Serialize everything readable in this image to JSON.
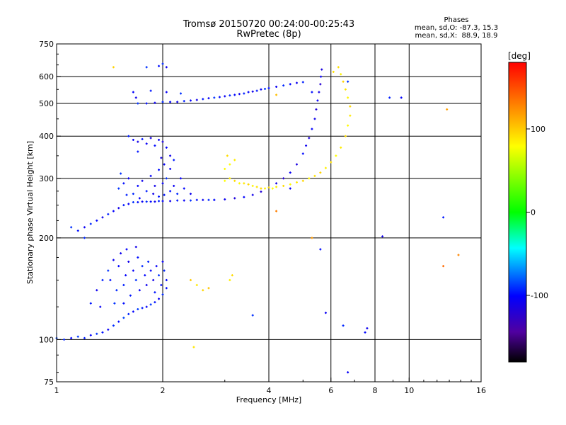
{
  "header": {
    "title": "Tromsø 20150720 00:24:00-00:25:43",
    "subtitle": "RwPretec (8p)"
  },
  "stats": {
    "heading": "Phases",
    "line_o": "mean, sd,O: -87.3, 15.3",
    "line_x": "mean, sd,X:  88.9, 18.9"
  },
  "colorbar": {
    "unit": "[deg]",
    "ticks": [
      {
        "value": 100,
        "label": "100"
      },
      {
        "value": 0,
        "label": "0"
      },
      {
        "value": -100,
        "label": "-100"
      }
    ],
    "range": [
      -180,
      180
    ],
    "stops": [
      "#ff0000",
      "#ff8000",
      "#ffff00",
      "#00ff00",
      "#00ffff",
      "#0000ff",
      "#5000a0",
      "#000000"
    ]
  },
  "chart_data": {
    "type": "scatter",
    "title": "Tromsø 20150720 00:24:00-00:25:43",
    "subtitle": "RwPretec (8p)",
    "xlabel": "Frequency [MHz]",
    "ylabel": "Stationary phase Virtual Height [km]",
    "xscale": "log",
    "yscale": "log",
    "xlim": [
      1,
      16
    ],
    "ylim": [
      75,
      750
    ],
    "xticks": [
      {
        "value": 1,
        "label": "1"
      },
      {
        "value": 2,
        "label": "2"
      },
      {
        "value": 4,
        "label": "4"
      },
      {
        "value": 6,
        "label": "6"
      },
      {
        "value": 8,
        "label": "8"
      },
      {
        "value": 10,
        "label": "10"
      },
      {
        "value": 16,
        "label": "16"
      }
    ],
    "yticks": [
      {
        "value": 75,
        "label": "75"
      },
      {
        "value": 100,
        "label": "100"
      },
      {
        "value": 200,
        "label": "200"
      },
      {
        "value": 300,
        "label": "300"
      },
      {
        "value": 400,
        "label": "400"
      },
      {
        "value": 500,
        "label": "500"
      },
      {
        "value": 600,
        "label": "600"
      },
      {
        "value": 750,
        "label": "750"
      }
    ],
    "x_gridlines": [
      2,
      4,
      6,
      8,
      10
    ],
    "y_gridlines": [
      100,
      200,
      300,
      400,
      500,
      600
    ],
    "grid": true,
    "color_variable": "phase [deg]",
    "series": [
      {
        "trace": "o-trace lower layer",
        "phase": -95,
        "points": [
          [
            1.0,
            101
          ],
          [
            1.05,
            100
          ],
          [
            1.1,
            101
          ],
          [
            1.15,
            102
          ],
          [
            1.2,
            101
          ],
          [
            1.25,
            103
          ],
          [
            1.3,
            104
          ],
          [
            1.35,
            105
          ],
          [
            1.4,
            107
          ],
          [
            1.45,
            110
          ],
          [
            1.5,
            113
          ],
          [
            1.55,
            116
          ],
          [
            1.6,
            119
          ],
          [
            1.65,
            121
          ],
          [
            1.7,
            123
          ],
          [
            1.75,
            124
          ],
          [
            1.8,
            125
          ],
          [
            1.85,
            127
          ],
          [
            1.9,
            129
          ],
          [
            1.95,
            132
          ],
          [
            2.0,
            136
          ],
          [
            2.05,
            142
          ]
        ]
      },
      {
        "trace": "o-trace scatter 120-190 km",
        "phase": -100,
        "points": [
          [
            1.4,
            160
          ],
          [
            1.42,
            150
          ],
          [
            1.45,
            172
          ],
          [
            1.48,
            140
          ],
          [
            1.5,
            165
          ],
          [
            1.52,
            180
          ],
          [
            1.55,
            145
          ],
          [
            1.57,
            155
          ],
          [
            1.6,
            170
          ],
          [
            1.62,
            135
          ],
          [
            1.65,
            160
          ],
          [
            1.68,
            150
          ],
          [
            1.7,
            175
          ],
          [
            1.72,
            140
          ],
          [
            1.75,
            165
          ],
          [
            1.78,
            155
          ],
          [
            1.8,
            145
          ],
          [
            1.82,
            170
          ],
          [
            1.85,
            160
          ],
          [
            1.88,
            150
          ],
          [
            1.9,
            138
          ],
          [
            1.92,
            165
          ],
          [
            1.95,
            155
          ],
          [
            1.98,
            145
          ],
          [
            2.0,
            170
          ],
          [
            2.02,
            160
          ],
          [
            2.05,
            150
          ],
          [
            1.3,
            140
          ],
          [
            1.35,
            150
          ],
          [
            1.58,
            185
          ],
          [
            1.68,
            188
          ],
          [
            1.25,
            128
          ],
          [
            1.33,
            125
          ],
          [
            1.46,
            128
          ],
          [
            1.55,
            128
          ]
        ]
      },
      {
        "trace": "o-trace F-layer ramp",
        "phase": -100,
        "points": [
          [
            1.1,
            215
          ],
          [
            1.15,
            210
          ],
          [
            1.2,
            215
          ],
          [
            1.25,
            220
          ],
          [
            1.3,
            225
          ],
          [
            1.35,
            230
          ],
          [
            1.4,
            235
          ],
          [
            1.45,
            240
          ],
          [
            1.5,
            245
          ],
          [
            1.55,
            250
          ],
          [
            1.6,
            252
          ],
          [
            1.65,
            255
          ],
          [
            1.7,
            255
          ],
          [
            1.75,
            256
          ],
          [
            1.8,
            256
          ],
          [
            1.85,
            256
          ],
          [
            1.9,
            256
          ],
          [
            1.95,
            257
          ],
          [
            2.0,
            257
          ],
          [
            2.1,
            257
          ],
          [
            2.2,
            258
          ],
          [
            2.3,
            258
          ],
          [
            2.4,
            258
          ],
          [
            2.5,
            259
          ],
          [
            2.6,
            259
          ],
          [
            2.7,
            259
          ],
          [
            2.8,
            259
          ]
        ]
      },
      {
        "trace": "o-trace dense 250-320 km",
        "phase": -100,
        "points": [
          [
            1.5,
            280
          ],
          [
            1.55,
            290
          ],
          [
            1.6,
            300
          ],
          [
            1.65,
            270
          ],
          [
            1.7,
            285
          ],
          [
            1.75,
            295
          ],
          [
            1.8,
            275
          ],
          [
            1.85,
            305
          ],
          [
            1.9,
            285
          ],
          [
            1.95,
            265
          ],
          [
            2.0,
            290
          ],
          [
            2.05,
            300
          ],
          [
            2.1,
            275
          ],
          [
            2.15,
            285
          ],
          [
            2.2,
            270
          ],
          [
            2.3,
            280
          ],
          [
            2.4,
            270
          ],
          [
            1.58,
            268
          ],
          [
            1.72,
            262
          ],
          [
            1.88,
            270
          ],
          [
            2.02,
            268
          ],
          [
            2.25,
            300
          ],
          [
            1.52,
            310
          ],
          [
            1.95,
            318
          ]
        ]
      },
      {
        "trace": "o-trace 330-420 km",
        "phase": -105,
        "points": [
          [
            1.6,
            400
          ],
          [
            1.65,
            390
          ],
          [
            1.7,
            385
          ],
          [
            1.75,
            392
          ],
          [
            1.8,
            380
          ],
          [
            1.85,
            395
          ],
          [
            1.9,
            375
          ],
          [
            1.95,
            390
          ],
          [
            2.0,
            385
          ],
          [
            2.05,
            370
          ],
          [
            2.1,
            350
          ],
          [
            2.15,
            340
          ],
          [
            2.02,
            330
          ],
          [
            1.98,
            345
          ],
          [
            1.7,
            360
          ],
          [
            2.1,
            320
          ]
        ]
      },
      {
        "trace": "o-trace 500-560 km",
        "phase": -100,
        "points": [
          [
            1.7,
            500
          ],
          [
            1.8,
            500
          ],
          [
            1.9,
            502
          ],
          [
            2.0,
            505
          ],
          [
            2.1,
            505
          ],
          [
            2.2,
            505
          ],
          [
            2.3,
            508
          ],
          [
            2.4,
            510
          ],
          [
            2.5,
            512
          ],
          [
            2.6,
            515
          ],
          [
            2.7,
            518
          ],
          [
            2.8,
            520
          ],
          [
            2.9,
            522
          ],
          [
            3.0,
            525
          ],
          [
            3.1,
            528
          ],
          [
            3.2,
            530
          ],
          [
            3.3,
            533
          ],
          [
            3.4,
            535
          ],
          [
            3.5,
            540
          ],
          [
            3.6,
            542
          ],
          [
            3.7,
            545
          ],
          [
            3.8,
            550
          ],
          [
            3.9,
            552
          ],
          [
            4.0,
            555
          ],
          [
            4.2,
            560
          ],
          [
            4.4,
            565
          ],
          [
            4.6,
            570
          ],
          [
            4.8,
            575
          ],
          [
            5.0,
            578
          ],
          [
            1.65,
            540
          ],
          [
            1.68,
            520
          ],
          [
            1.85,
            545
          ],
          [
            2.05,
            540
          ],
          [
            2.25,
            535
          ]
        ]
      },
      {
        "trace": "o-trace 600-650 km",
        "phase": -100,
        "points": [
          [
            1.8,
            640
          ],
          [
            1.95,
            645
          ],
          [
            2.05,
            640
          ],
          [
            2.0,
            655
          ]
        ]
      },
      {
        "trace": "o-trace F2 bottom",
        "phase": -110,
        "points": [
          [
            2.8,
            259
          ],
          [
            3.0,
            260
          ],
          [
            3.2,
            262
          ],
          [
            3.4,
            264
          ],
          [
            3.6,
            268
          ],
          [
            3.8,
            274
          ],
          [
            4.0,
            282
          ],
          [
            4.2,
            290
          ],
          [
            4.4,
            300
          ],
          [
            4.6,
            312
          ],
          [
            4.8,
            330
          ],
          [
            5.0,
            355
          ],
          [
            5.1,
            375
          ],
          [
            5.2,
            395
          ],
          [
            5.3,
            420
          ],
          [
            5.4,
            450
          ],
          [
            5.45,
            480
          ],
          [
            5.5,
            510
          ],
          [
            5.55,
            540
          ],
          [
            5.6,
            570
          ],
          [
            5.62,
            600
          ],
          [
            5.65,
            630
          ]
        ]
      },
      {
        "trace": "x-trace",
        "phase": 88,
        "points": [
          [
            3.0,
            295
          ],
          [
            3.1,
            300
          ],
          [
            3.2,
            295
          ],
          [
            3.3,
            290
          ],
          [
            3.4,
            290
          ],
          [
            3.5,
            288
          ],
          [
            3.6,
            285
          ],
          [
            3.7,
            283
          ],
          [
            3.8,
            280
          ],
          [
            3.9,
            280
          ],
          [
            4.0,
            282
          ],
          [
            4.1,
            280
          ],
          [
            4.2,
            283
          ],
          [
            4.4,
            285
          ],
          [
            4.6,
            288
          ],
          [
            4.8,
            292
          ],
          [
            5.0,
            295
          ],
          [
            5.2,
            300
          ],
          [
            5.4,
            305
          ],
          [
            5.6,
            312
          ],
          [
            5.8,
            322
          ],
          [
            6.0,
            335
          ],
          [
            6.2,
            350
          ],
          [
            6.4,
            370
          ],
          [
            6.6,
            400
          ],
          [
            6.7,
            430
          ],
          [
            6.8,
            460
          ],
          [
            6.8,
            490
          ],
          [
            6.7,
            520
          ],
          [
            6.6,
            550
          ],
          [
            6.5,
            580
          ],
          [
            6.4,
            610
          ],
          [
            6.3,
            640
          ],
          [
            3.1,
            330
          ],
          [
            3.2,
            340
          ],
          [
            3.05,
            350
          ],
          [
            3.0,
            320
          ]
        ]
      },
      {
        "trace": "x-trace scatter",
        "phase": 95,
        "points": [
          [
            3.1,
            150
          ],
          [
            3.15,
            155
          ],
          [
            2.4,
            150
          ],
          [
            2.5,
            145
          ],
          [
            2.6,
            140
          ],
          [
            2.7,
            142
          ],
          [
            2.45,
            95
          ],
          [
            1.45,
            640
          ],
          [
            4.2,
            530
          ],
          [
            6.1,
            620
          ]
        ]
      },
      {
        "trace": "sparse echoes",
        "phase": -100,
        "points": [
          [
            3.6,
            118
          ],
          [
            5.6,
            185
          ],
          [
            5.8,
            120
          ],
          [
            6.5,
            110
          ],
          [
            7.5,
            105
          ],
          [
            7.6,
            108
          ],
          [
            8.8,
            520
          ],
          [
            9.5,
            520
          ],
          [
            8.4,
            202
          ],
          [
            12.5,
            230
          ],
          [
            6.7,
            80
          ],
          [
            6.7,
            580
          ],
          [
            5.3,
            540
          ],
          [
            4.6,
            280
          ],
          [
            1.2,
            200
          ]
        ]
      },
      {
        "trace": "isolated high-phase echoes",
        "phase": 130,
        "points": [
          [
            12.8,
            480
          ],
          [
            13.8,
            178
          ],
          [
            12.5,
            165
          ],
          [
            5.3,
            200
          ],
          [
            4.2,
            240
          ]
        ]
      }
    ]
  }
}
